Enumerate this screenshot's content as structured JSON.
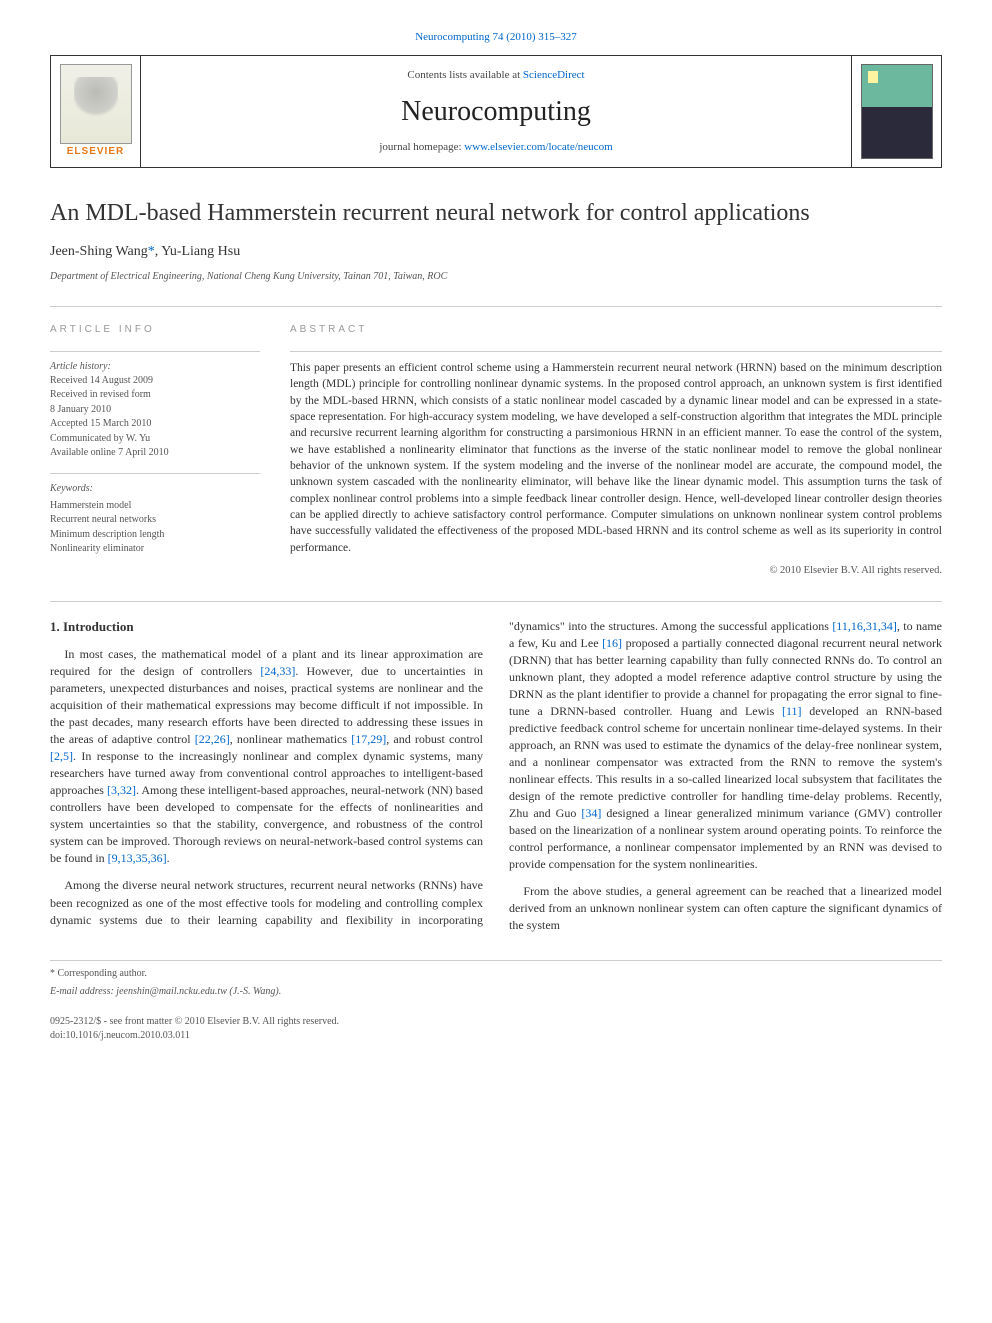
{
  "journal_ref_prefix": "Neurocomputing 74 (2010) 315–327",
  "journal_ref_link": "Neurocomputing",
  "masthead": {
    "contents_prefix": "Contents lists available at ",
    "contents_link": "ScienceDirect",
    "journal_name": "Neurocomputing",
    "homepage_prefix": "journal homepage: ",
    "homepage_url": "www.elsevier.com/locate/neucom",
    "elsevier_label": "ELSEVIER"
  },
  "title": "An MDL-based Hammerstein recurrent neural network for control applications",
  "authors_html": {
    "a1": "Jeen-Shing Wang",
    "corr_mark": "*",
    "sep": ", ",
    "a2": "Yu-Liang Hsu"
  },
  "affiliation": "Department of Electrical Engineering, National Cheng Kung University, Tainan 701, Taiwan, ROC",
  "article_info": {
    "label": "article info",
    "history_label": "Article history:",
    "history": [
      "Received 14 August 2009",
      "Received in revised form",
      "8 January 2010",
      "Accepted 15 March 2010",
      "Communicated by W. Yu",
      "Available online 7 April 2010"
    ],
    "keywords_label": "Keywords:",
    "keywords": [
      "Hammerstein model",
      "Recurrent neural networks",
      "Minimum description length",
      "Nonlinearity eliminator"
    ]
  },
  "abstract": {
    "label": "abstract",
    "text": "This paper presents an efficient control scheme using a Hammerstein recurrent neural network (HRNN) based on the minimum description length (MDL) principle for controlling nonlinear dynamic systems. In the proposed control approach, an unknown system is first identified by the MDL-based HRNN, which consists of a static nonlinear model cascaded by a dynamic linear model and can be expressed in a state-space representation. For high-accuracy system modeling, we have developed a self-construction algorithm that integrates the MDL principle and recursive recurrent learning algorithm for constructing a parsimonious HRNN in an efficient manner. To ease the control of the system, we have established a nonlinearity eliminator that functions as the inverse of the static nonlinear model to remove the global nonlinear behavior of the unknown system. If the system modeling and the inverse of the nonlinear model are accurate, the compound model, the unknown system cascaded with the nonlinearity eliminator, will behave like the linear dynamic model. This assumption turns the task of complex nonlinear control problems into a simple feedback linear controller design. Hence, well-developed linear controller design theories can be applied directly to achieve satisfactory control performance. Computer simulations on unknown nonlinear system control problems have successfully validated the effectiveness of the proposed MDL-based HRNN and its control scheme as well as its superiority in control performance.",
    "copyright": "© 2010 Elsevier B.V. All rights reserved."
  },
  "body": {
    "heading": "1.  Introduction",
    "p1_a": "In most cases, the mathematical model of a plant and its linear approximation are required for the design of controllers ",
    "p1_r1": "[24,33]",
    "p1_b": ". However, due to uncertainties in parameters, unexpected disturbances and noises, practical systems are nonlinear and the acquisition of their mathematical expressions may become difficult if not impossible. In the past decades, many research efforts have been directed to addressing these issues in the areas of adaptive control ",
    "p1_r2": "[22,26]",
    "p1_c": ", nonlinear mathematics ",
    "p1_r3": "[17,29]",
    "p1_d": ", and robust control ",
    "p1_r4": "[2,5]",
    "p1_e": ". In response to the increasingly nonlinear and complex dynamic systems, many researchers have turned away from conventional control approaches to intelligent-based approaches ",
    "p1_r5": "[3,32]",
    "p1_f": ". Among these intelligent-based approaches, neural-network (NN) based controllers have been developed to compensate for the effects of nonlinearities and system uncertainties so that the stability, convergence, and robustness of the control system can be improved. Thorough reviews on neural-network-based control systems can be found in ",
    "p1_r6": "[9,13,35,36]",
    "p1_g": ".",
    "p2_a": "Among the diverse neural network structures, recurrent neural networks (RNNs) have been recognized as one of the most effective tools for modeling and controlling complex dynamic systems due to their learning capability and flexibility in incorporating \"dynamics\" into the structures. Among the successful applications ",
    "p2_r1": "[11,16,31,34]",
    "p2_b": ", to name a few, Ku and Lee ",
    "p2_r2": "[16]",
    "p2_c": " proposed a partially connected diagonal recurrent neural network (DRNN) that has better learning capability than fully connected RNNs do. To control an unknown plant, they adopted a model reference adaptive control structure by using the DRNN as the plant identifier to provide a channel for propagating the error signal to fine-tune a DRNN-based controller. Huang and Lewis ",
    "p2_r3": "[11]",
    "p2_d": " developed an RNN-based predictive feedback control scheme for uncertain nonlinear time-delayed systems. In their approach, an RNN was used to estimate the dynamics of the delay-free nonlinear system, and a nonlinear compensator was extracted from the RNN to remove the system's nonlinear effects. This results in a so-called linearized local subsystem that facilitates the design of the remote predictive controller for handling time-delay problems. Recently, Zhu and Guo ",
    "p2_r4": "[34]",
    "p2_e": " designed a linear generalized minimum variance (GMV) controller based on the linearization of a nonlinear system around operating points. To reinforce the control performance, a nonlinear compensator implemented by an RNN was devised to provide compensation for the system nonlinearities.",
    "p3": "From the above studies, a general agreement can be reached that a linearized model derived from an unknown nonlinear system can often capture the significant dynamics of the system"
  },
  "footer": {
    "corr_note": "* Corresponding author.",
    "email_label": "E-mail address: ",
    "email": "jeenshin@mail.ncku.edu.tw (J.-S. Wang).",
    "issn": "0925-2312/$ - see front matter © 2010 Elsevier B.V. All rights reserved.",
    "doi": "doi:10.1016/j.neucom.2010.03.011"
  },
  "colors": {
    "link": "#0066cc",
    "elsevier_orange": "#e67817",
    "rule": "#cccccc",
    "text": "#333333",
    "muted": "#555555",
    "label_gray": "#999999"
  }
}
